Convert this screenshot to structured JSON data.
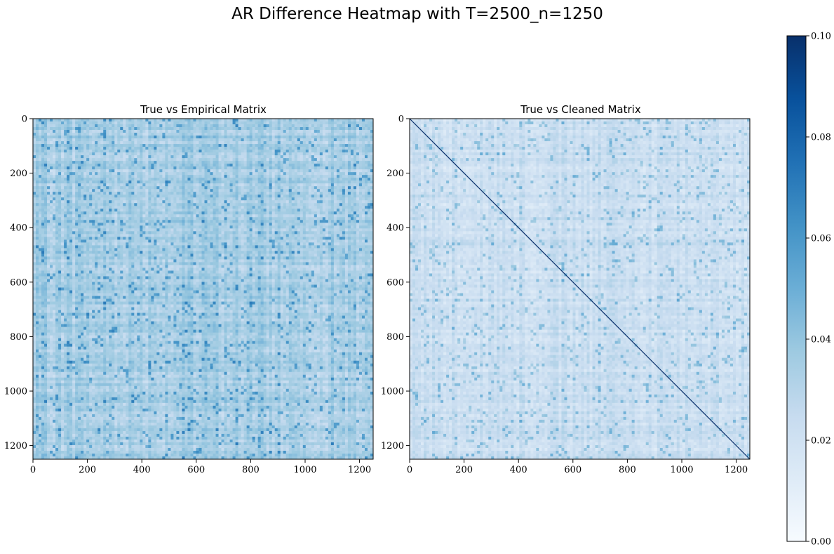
{
  "chart_data": {
    "type": "heatmap",
    "title": "AR Difference Heatmap with T=2500_n=1250",
    "matrix_size": 1250,
    "panels": [
      {
        "title": "True vs Empirical Matrix",
        "xticks": [
          0,
          200,
          400,
          600,
          800,
          1000,
          1200
        ],
        "yticks": [
          0,
          200,
          400,
          600,
          800,
          1000,
          1200
        ],
        "xlim": [
          0,
          1250
        ],
        "ylim": [
          1250,
          0
        ],
        "typical_value_range": [
          0.02,
          0.05
        ],
        "diagonal_highlight": false
      },
      {
        "title": "True vs Cleaned Matrix",
        "xticks": [
          0,
          200,
          400,
          600,
          800,
          1000,
          1200
        ],
        "yticks": [
          0,
          200,
          400,
          600,
          800,
          1000,
          1200
        ],
        "xlim": [
          0,
          1250
        ],
        "ylim": [
          1250,
          0
        ],
        "typical_value_range": [
          0.01,
          0.035
        ],
        "diagonal_highlight": true,
        "diagonal_value": 0.1
      }
    ],
    "colorbar": {
      "colormap": "Blues",
      "range": [
        0.0,
        0.1
      ],
      "ticks": [
        "0.00",
        "0.02",
        "0.04",
        "0.06",
        "0.08",
        "0.10"
      ]
    },
    "grid": false
  }
}
